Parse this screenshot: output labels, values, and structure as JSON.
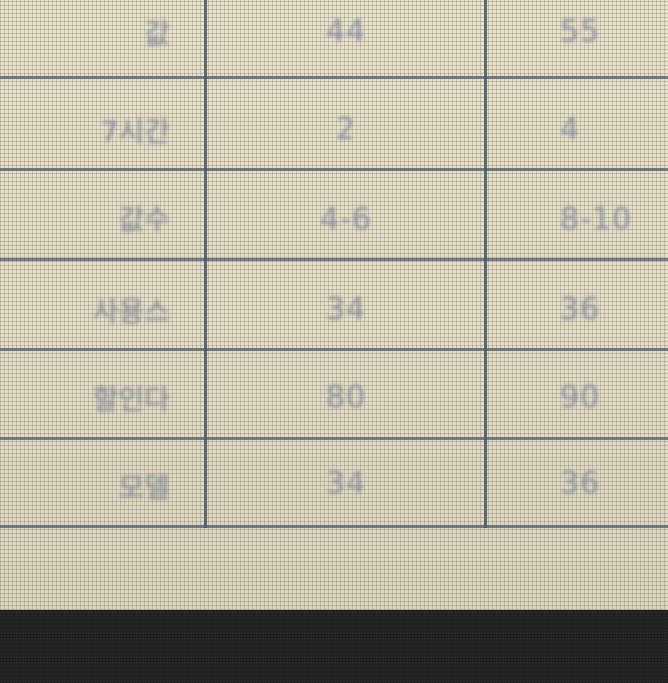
{
  "table": {
    "rows": [
      {
        "label": "값",
        "col1": "44",
        "col2": "55"
      },
      {
        "label": "7시간",
        "col1": "2",
        "col2": "4"
      },
      {
        "label": "값수",
        "col1": "4-6",
        "col2": "8-10"
      },
      {
        "label": "사용스",
        "col1": "34",
        "col2": "36"
      },
      {
        "label": "할인다",
        "col1": "80",
        "col2": "90"
      },
      {
        "label": "모델",
        "col1": "34",
        "col2": "36"
      }
    ]
  },
  "colors": {
    "screen_background": "#e7e0c8",
    "grid_line": "#5c6a78",
    "text": "#8c94a2",
    "bezel": "#282728"
  }
}
